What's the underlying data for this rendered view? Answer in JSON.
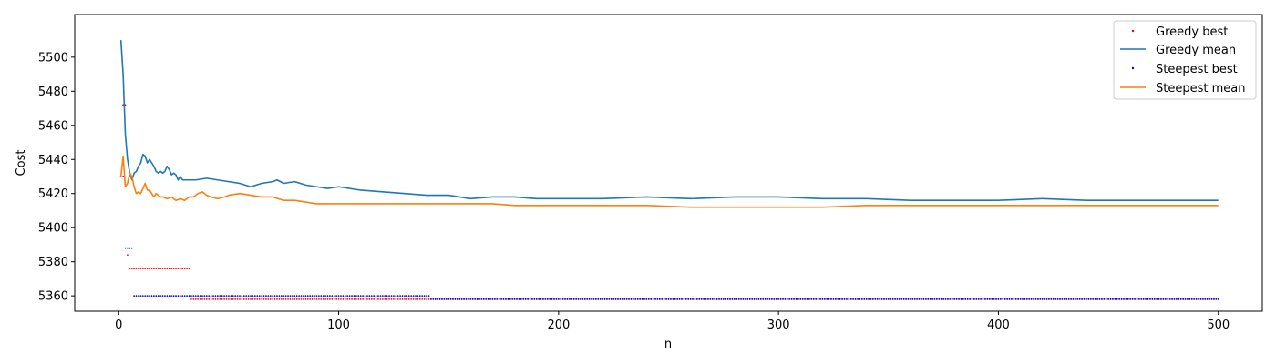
{
  "chart_data": {
    "type": "line",
    "xlabel": "n",
    "ylabel": "Cost",
    "xlim": [
      -20,
      520
    ],
    "ylim": [
      5351,
      5525
    ],
    "xticks": [
      0,
      100,
      200,
      300,
      400,
      500
    ],
    "yticks": [
      5360,
      5380,
      5400,
      5420,
      5440,
      5460,
      5480,
      5500
    ],
    "grid": false,
    "legend_position": "top-right",
    "colors": {
      "greedy_best": "#ff0000",
      "greedy_mean": "#1f77b4",
      "steepest_best": "#0000cc",
      "steepest_mean": "#ff7f0e"
    },
    "series": [
      {
        "name": "Greedy best",
        "style": "dots",
        "steps": [
          [
            1,
            5430
          ],
          [
            2,
            5472
          ],
          [
            4,
            5384
          ],
          [
            5,
            5376
          ],
          [
            33,
            5358
          ],
          [
            500,
            5358
          ]
        ],
        "x_range": [
          1,
          500
        ]
      },
      {
        "name": "Greedy mean",
        "style": "line",
        "points": [
          [
            1,
            5510
          ],
          [
            2,
            5490
          ],
          [
            3,
            5455
          ],
          [
            4,
            5440
          ],
          [
            5,
            5432
          ],
          [
            6,
            5428
          ],
          [
            7,
            5432
          ],
          [
            8,
            5433
          ],
          [
            9,
            5436
          ],
          [
            10,
            5438
          ],
          [
            11,
            5443
          ],
          [
            12,
            5442
          ],
          [
            13,
            5438
          ],
          [
            14,
            5440
          ],
          [
            15,
            5438
          ],
          [
            16,
            5436
          ],
          [
            17,
            5433
          ],
          [
            18,
            5432
          ],
          [
            19,
            5433
          ],
          [
            20,
            5432
          ],
          [
            21,
            5433
          ],
          [
            22,
            5436
          ],
          [
            23,
            5434
          ],
          [
            24,
            5431
          ],
          [
            25,
            5432
          ],
          [
            26,
            5431
          ],
          [
            27,
            5428
          ],
          [
            28,
            5430
          ],
          [
            29,
            5428
          ],
          [
            30,
            5428
          ],
          [
            35,
            5428
          ],
          [
            40,
            5429
          ],
          [
            45,
            5428
          ],
          [
            50,
            5427
          ],
          [
            55,
            5426
          ],
          [
            60,
            5424
          ],
          [
            65,
            5426
          ],
          [
            70,
            5427
          ],
          [
            72,
            5428
          ],
          [
            75,
            5426
          ],
          [
            80,
            5427
          ],
          [
            85,
            5425
          ],
          [
            90,
            5424
          ],
          [
            95,
            5423
          ],
          [
            100,
            5424
          ],
          [
            110,
            5422
          ],
          [
            120,
            5421
          ],
          [
            130,
            5420
          ],
          [
            140,
            5419
          ],
          [
            150,
            5419
          ],
          [
            160,
            5417
          ],
          [
            170,
            5418
          ],
          [
            180,
            5418
          ],
          [
            190,
            5417
          ],
          [
            200,
            5417
          ],
          [
            220,
            5417
          ],
          [
            240,
            5418
          ],
          [
            260,
            5417
          ],
          [
            280,
            5418
          ],
          [
            300,
            5418
          ],
          [
            320,
            5417
          ],
          [
            340,
            5417
          ],
          [
            360,
            5416
          ],
          [
            380,
            5416
          ],
          [
            400,
            5416
          ],
          [
            420,
            5417
          ],
          [
            440,
            5416
          ],
          [
            460,
            5416
          ],
          [
            480,
            5416
          ],
          [
            500,
            5416
          ]
        ]
      },
      {
        "name": "Steepest best",
        "style": "dots",
        "steps": [
          [
            1,
            5430
          ],
          [
            3,
            5388
          ],
          [
            7,
            5360
          ],
          [
            142,
            5358
          ],
          [
            500,
            5358
          ]
        ],
        "x_range": [
          1,
          500
        ]
      },
      {
        "name": "Steepest mean",
        "style": "line",
        "points": [
          [
            1,
            5430
          ],
          [
            2,
            5442
          ],
          [
            3,
            5424
          ],
          [
            4,
            5426
          ],
          [
            5,
            5432
          ],
          [
            6,
            5430
          ],
          [
            7,
            5424
          ],
          [
            8,
            5420
          ],
          [
            9,
            5421
          ],
          [
            10,
            5420
          ],
          [
            11,
            5423
          ],
          [
            12,
            5426
          ],
          [
            13,
            5422
          ],
          [
            14,
            5422
          ],
          [
            15,
            5420
          ],
          [
            16,
            5418
          ],
          [
            17,
            5420
          ],
          [
            18,
            5419
          ],
          [
            19,
            5418
          ],
          [
            20,
            5418
          ],
          [
            22,
            5417
          ],
          [
            24,
            5418
          ],
          [
            26,
            5416
          ],
          [
            28,
            5417
          ],
          [
            30,
            5416
          ],
          [
            32,
            5418
          ],
          [
            34,
            5418
          ],
          [
            36,
            5420
          ],
          [
            38,
            5421
          ],
          [
            40,
            5419
          ],
          [
            42,
            5418
          ],
          [
            45,
            5417
          ],
          [
            48,
            5418
          ],
          [
            50,
            5419
          ],
          [
            55,
            5420
          ],
          [
            60,
            5419
          ],
          [
            65,
            5418
          ],
          [
            70,
            5418
          ],
          [
            75,
            5416
          ],
          [
            80,
            5416
          ],
          [
            90,
            5414
          ],
          [
            100,
            5414
          ],
          [
            110,
            5414
          ],
          [
            120,
            5414
          ],
          [
            130,
            5414
          ],
          [
            140,
            5414
          ],
          [
            150,
            5414
          ],
          [
            160,
            5414
          ],
          [
            170,
            5414
          ],
          [
            180,
            5413
          ],
          [
            200,
            5413
          ],
          [
            220,
            5413
          ],
          [
            240,
            5413
          ],
          [
            260,
            5412
          ],
          [
            280,
            5412
          ],
          [
            300,
            5412
          ],
          [
            320,
            5412
          ],
          [
            340,
            5413
          ],
          [
            360,
            5413
          ],
          [
            380,
            5413
          ],
          [
            400,
            5413
          ],
          [
            420,
            5413
          ],
          [
            440,
            5413
          ],
          [
            460,
            5413
          ],
          [
            480,
            5413
          ],
          [
            500,
            5413
          ]
        ]
      }
    ]
  }
}
